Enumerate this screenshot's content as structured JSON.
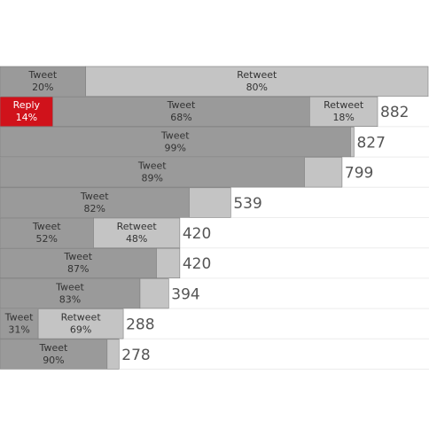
{
  "chart_data": {
    "type": "bar",
    "stacked": true,
    "orientation": "horizontal",
    "grid": false,
    "colors": {
      "Tweet": "#9a9a9a",
      "Retweet": "#c4c4c4",
      "Reply": "#d0121b"
    },
    "rows": [
      {
        "total": "",
        "total_value": 1000,
        "segments": [
          {
            "type": "Tweet",
            "pct": 20
          },
          {
            "type": "Retweet",
            "pct": 80
          }
        ]
      },
      {
        "total": "882",
        "total_value": 882,
        "segments": [
          {
            "type": "Reply",
            "pct": 14
          },
          {
            "type": "Tweet",
            "pct": 68
          },
          {
            "type": "Retweet",
            "pct": 18
          }
        ]
      },
      {
        "total": "827",
        "total_value": 827,
        "segments": [
          {
            "type": "Tweet",
            "pct": 99
          },
          {
            "type": "Retweet",
            "pct": 1,
            "hide_label": true
          }
        ]
      },
      {
        "total": "799",
        "total_value": 799,
        "segments": [
          {
            "type": "Tweet",
            "pct": 89
          },
          {
            "type": "Retweet",
            "pct": 11,
            "hide_label": true
          }
        ]
      },
      {
        "total": "539",
        "total_value": 539,
        "segments": [
          {
            "type": "Tweet",
            "pct": 82
          },
          {
            "type": "Retweet",
            "pct": 18,
            "hide_label": true
          }
        ]
      },
      {
        "total": "420",
        "total_value": 420,
        "segments": [
          {
            "type": "Tweet",
            "pct": 52
          },
          {
            "type": "Retweet",
            "pct": 48
          }
        ]
      },
      {
        "total": "420",
        "total_value": 420,
        "segments": [
          {
            "type": "Tweet",
            "pct": 87
          },
          {
            "type": "Retweet",
            "pct": 13,
            "hide_label": true
          }
        ]
      },
      {
        "total": "394",
        "total_value": 394,
        "segments": [
          {
            "type": "Tweet",
            "pct": 83
          },
          {
            "type": "Retweet",
            "pct": 17,
            "hide_label": true
          }
        ]
      },
      {
        "total": "288",
        "total_value": 288,
        "segments": [
          {
            "type": "Tweet",
            "pct": 31
          },
          {
            "type": "Retweet",
            "pct": 69
          }
        ]
      },
      {
        "total": "278",
        "total_value": 278,
        "segments": [
          {
            "type": "Tweet",
            "pct": 90
          },
          {
            "type": "Retweet",
            "pct": 10,
            "hide_label": true
          }
        ]
      }
    ]
  }
}
